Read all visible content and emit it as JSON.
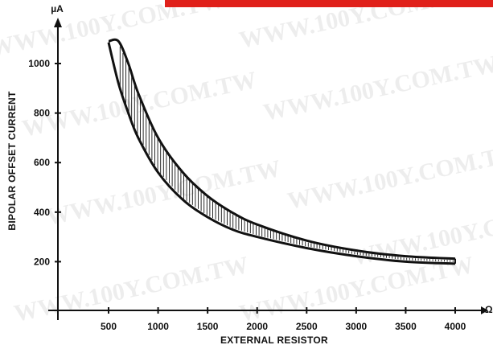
{
  "banner_color": "#e0201a",
  "watermark_text": "WWW.100Y.COM.TW",
  "chart_data": {
    "type": "area",
    "title": "",
    "xlabel": "EXTERNAL RESISTOR",
    "ylabel": "BIPOLAR OFFSET CURRENT",
    "x_unit": "Ω",
    "y_unit": "µA",
    "xlim": [
      0,
      4300
    ],
    "ylim": [
      -30,
      1160
    ],
    "x_ticks": [
      500,
      1000,
      1500,
      2000,
      2500,
      3000,
      3500,
      4000
    ],
    "y_ticks": [
      200,
      400,
      600,
      800,
      1000
    ],
    "grid": false,
    "legend": "none",
    "line_color": "#111111",
    "series": [
      {
        "name": "",
        "x": [
          500,
          600,
          700,
          800,
          1000,
          1250,
          1500,
          1750,
          2000,
          2500,
          3000,
          3500,
          4000
        ],
        "upper": [
          1090,
          1090,
          1000,
          880,
          700,
          560,
          465,
          398,
          350,
          285,
          245,
          222,
          212
        ],
        "lower": [
          1085,
          920,
          800,
          700,
          560,
          450,
          380,
          330,
          300,
          255,
          222,
          200,
          192
        ]
      }
    ]
  }
}
